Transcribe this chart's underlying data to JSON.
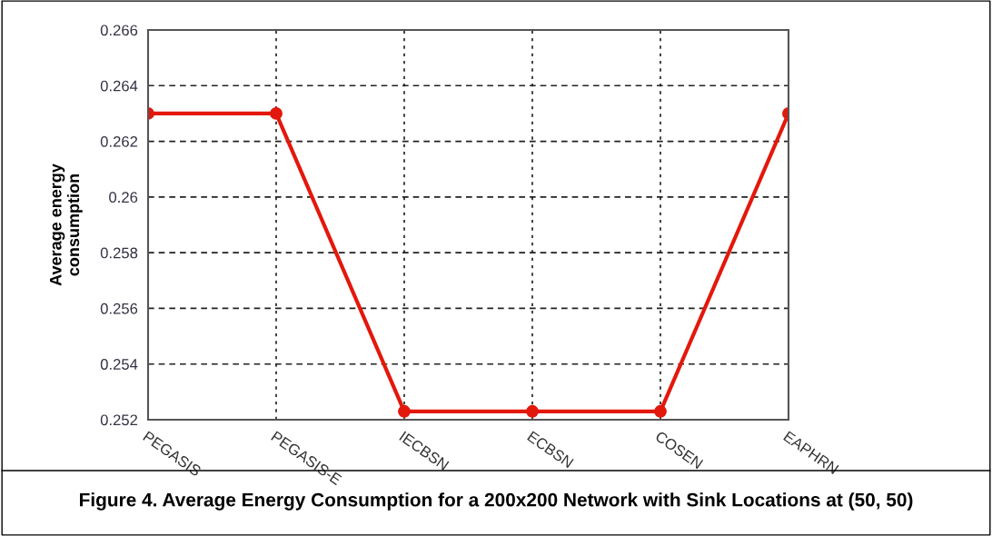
{
  "chart_data": {
    "type": "line",
    "categories": [
      "PEGASIS",
      "PEGASIS-E",
      "IECBSN",
      "ECBSN",
      "COSEN",
      "EAPHRN"
    ],
    "series": [
      {
        "color": "#e3180c",
        "values": [
          0.263,
          0.263,
          0.2523,
          0.2523,
          0.2523,
          0.263
        ]
      }
    ],
    "ylabel": "Average energy\nconsumption",
    "ylim": [
      0.252,
      0.266
    ],
    "yticks": [
      0.252,
      0.254,
      0.256,
      0.258,
      0.26,
      0.262,
      0.264,
      0.266
    ],
    "grid": true,
    "marker": "circle",
    "line_style": "solid",
    "annotations": [
      "Figure 4. Average Energy Consumption for a 200x200 Network with Sink Locations at (50, 50)"
    ]
  }
}
